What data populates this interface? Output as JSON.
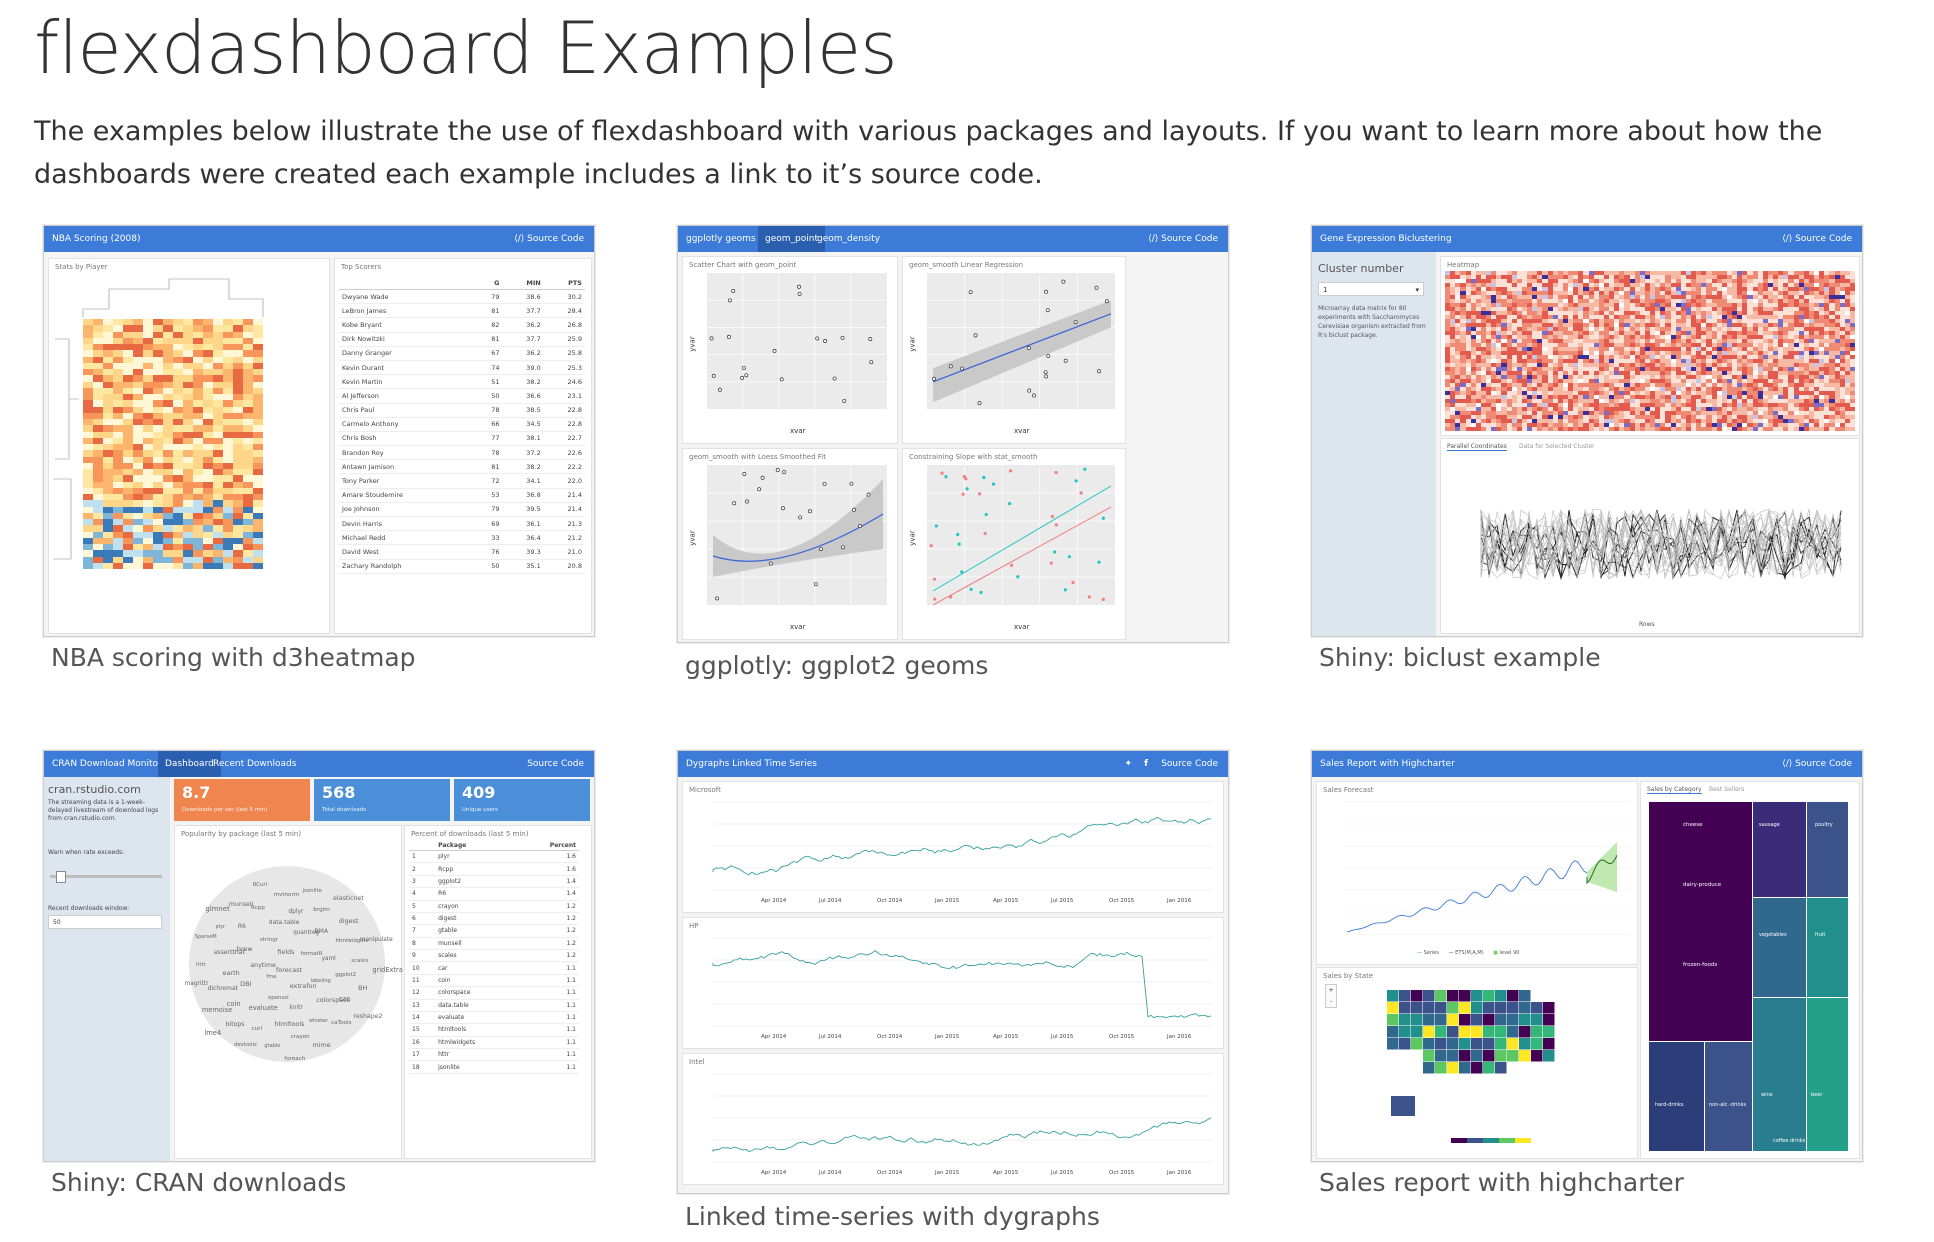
{
  "page": {
    "title": "flexdashboard Examples",
    "intro": "The examples below illustrate the use of flexdashboard with various packages and layouts. If you want to learn more about how the dashboards were created each example includes a link to it’s source code."
  },
  "cards": [
    {
      "caption": "NBA scoring with d3heatmap",
      "bar_title": "NBA Scoring (2008)",
      "bar_right": "⟨/⟩ Source Code",
      "panel_left": "Stats by Player",
      "panel_right": "Top Scorers",
      "table_headers": [
        "",
        "G",
        "MIN",
        "PTS"
      ],
      "rows": [
        [
          "Dwyane Wade",
          "79",
          "38.6",
          "30.2"
        ],
        [
          "LeBron James",
          "81",
          "37.7",
          "28.4"
        ],
        [
          "Kobe Bryant",
          "82",
          "36.2",
          "26.8"
        ],
        [
          "Dirk Nowitzki",
          "81",
          "37.7",
          "25.9"
        ],
        [
          "Danny Granger",
          "67",
          "36.2",
          "25.8"
        ],
        [
          "Kevin Durant",
          "74",
          "39.0",
          "25.3"
        ],
        [
          "Kevin Martin",
          "51",
          "38.2",
          "24.6"
        ],
        [
          "Al Jefferson",
          "50",
          "36.6",
          "23.1"
        ],
        [
          "Chris Paul",
          "78",
          "38.5",
          "22.8"
        ],
        [
          "Carmelo Anthony",
          "66",
          "34.5",
          "22.8"
        ],
        [
          "Chris Bosh",
          "77",
          "38.1",
          "22.7"
        ],
        [
          "Brandon Roy",
          "78",
          "37.2",
          "22.6"
        ],
        [
          "Antawn Jamison",
          "81",
          "38.2",
          "22.2"
        ],
        [
          "Tony Parker",
          "72",
          "34.1",
          "22.0"
        ],
        [
          "Amare Stoudemire",
          "53",
          "36.8",
          "21.4"
        ],
        [
          "Joe Johnson",
          "79",
          "39.5",
          "21.4"
        ],
        [
          "Devin Harris",
          "69",
          "36.1",
          "21.3"
        ],
        [
          "Michael Redd",
          "33",
          "36.4",
          "21.2"
        ],
        [
          "David West",
          "76",
          "39.3",
          "21.0"
        ],
        [
          "Zachary Randolph",
          "50",
          "35.1",
          "20.8"
        ]
      ]
    },
    {
      "caption": "ggplotly: ggplot2 geoms",
      "bar_title": "ggplotly geoms",
      "tabs": [
        "geom_point",
        "geom_density"
      ],
      "bar_right": "⟨/⟩ Source Code",
      "panels": [
        "Scatter Chart with geom_point",
        "geom_smooth Linear Regression",
        "geom_smooth with Loess Smoothed Fit",
        "Constraining Slope with stat_smooth"
      ],
      "axis_x": "xvar",
      "axis_y": "yvar"
    },
    {
      "caption": "Shiny: biclust example",
      "bar_title": "Gene Expression Biclustering",
      "bar_right": "⟨/⟩ Source Code",
      "sidebar_label": "Cluster number",
      "select_value": "1",
      "sidebar_text": "Microarray data matrix for 80 experiments with Saccharomyces Cerevisiae organism extracted from R's biclust package.",
      "heatmap_title": "Heatmap",
      "tabs": [
        "Parallel Coordinates",
        "Data for Selected Cluster"
      ],
      "rows_label": "Rows"
    },
    {
      "caption": "Shiny: CRAN downloads",
      "bar_title": "CRAN Download Monitor",
      "tabs": [
        "Dashboard",
        "Recent Downloads"
      ],
      "bar_right": "Source Code",
      "sidebar_title": "cran.rstudio.com",
      "sidebar_text": "The streaming data is a 1-week-delayed livestream of download logs from cran.rstudio.com.",
      "warn_label": "Warn when rate exceeds:",
      "window_label": "Recent downloads window:",
      "window_value": "50",
      "boxes": [
        {
          "value": "8.7",
          "label": "Downloads per sec (last 5 min)",
          "color": "#f0854f"
        },
        {
          "value": "568",
          "label": "Total downloads",
          "color": "#4a8fd8"
        },
        {
          "value": "409",
          "label": "Unique users",
          "color": "#4a8fd8"
        }
      ],
      "cloud_title": "Popularity by package (last 5 min)",
      "words": [
        "forecast",
        "fma",
        "fields",
        "extrafon",
        "anytime",
        "formatR",
        "openssl",
        "stringr",
        "labeling",
        "DBI",
        "quantreg",
        "knitr",
        "brew",
        "yaml",
        "evaluate",
        "data.table",
        "colorspace",
        "earth",
        "BMA",
        "htmltools",
        "R6",
        "ggplot2",
        "coin",
        "dplyr",
        "whisker",
        "assertthat",
        "htmlwidgets",
        "curl",
        "Rcpp",
        "car",
        "dichromat",
        "brglm",
        "crayon",
        "plyr",
        "scales",
        "bitops",
        "mvtnorm",
        "caTools",
        "httr",
        "digest",
        "gtable",
        "munsell",
        "BH",
        "memoise",
        "jsonlite",
        "mime",
        "SparseM",
        "manipulate",
        "devtools",
        "RCurl",
        "reshape2",
        "magrittr",
        "elasticnet",
        "foreach",
        "glmnet",
        "gridExtra",
        "lme4"
      ],
      "table_title": "Percent of downloads (last 5 min)",
      "table_headers": [
        "",
        "Package",
        "Percent"
      ],
      "rows": [
        [
          "1",
          "plyr",
          "1.6"
        ],
        [
          "2",
          "Rcpp",
          "1.6"
        ],
        [
          "3",
          "ggplot2",
          "1.4"
        ],
        [
          "4",
          "R6",
          "1.4"
        ],
        [
          "5",
          "crayon",
          "1.2"
        ],
        [
          "6",
          "digest",
          "1.2"
        ],
        [
          "7",
          "gtable",
          "1.2"
        ],
        [
          "8",
          "munsell",
          "1.2"
        ],
        [
          "9",
          "scales",
          "1.2"
        ],
        [
          "10",
          "car",
          "1.1"
        ],
        [
          "11",
          "coin",
          "1.1"
        ],
        [
          "12",
          "colorspace",
          "1.1"
        ],
        [
          "13",
          "data.table",
          "1.1"
        ],
        [
          "14",
          "evaluate",
          "1.1"
        ],
        [
          "15",
          "htmltools",
          "1.1"
        ],
        [
          "16",
          "htmlwidgets",
          "1.1"
        ],
        [
          "17",
          "httr",
          "1.1"
        ],
        [
          "18",
          "jsonlite",
          "1.1"
        ]
      ]
    },
    {
      "caption": "Linked time-series with dygraphs",
      "bar_title": "Dygraphs Linked Time Series",
      "bar_right": "Source Code",
      "panels": [
        "Microsoft",
        "HP",
        "Intel"
      ],
      "x_ticks": [
        "Apr 2014",
        "Jul 2014",
        "Oct 2014",
        "Jan 2015",
        "Apr 2015",
        "Jul 2015",
        "Oct 2015",
        "Jan 2016"
      ]
    },
    {
      "caption": "Sales report with highcharter",
      "bar_title": "Sales Report with Highcharter",
      "bar_right": "⟨/⟩ Source Code",
      "forecast_title": "Sales Forecast",
      "legend": [
        "Series",
        "ETS(M,A,M)",
        "level 90"
      ],
      "state_title": "Sales by State",
      "tabs": [
        "Sales by Category",
        "Best Sellers"
      ],
      "treemap": [
        "cheese",
        "dairy-produce",
        "frozen-foods",
        "sausage",
        "poultry",
        "vegetables",
        "fruit",
        "hard-drinks",
        "non-alc.-drinks",
        "wine",
        "beer",
        "coffee drinks"
      ]
    }
  ]
}
